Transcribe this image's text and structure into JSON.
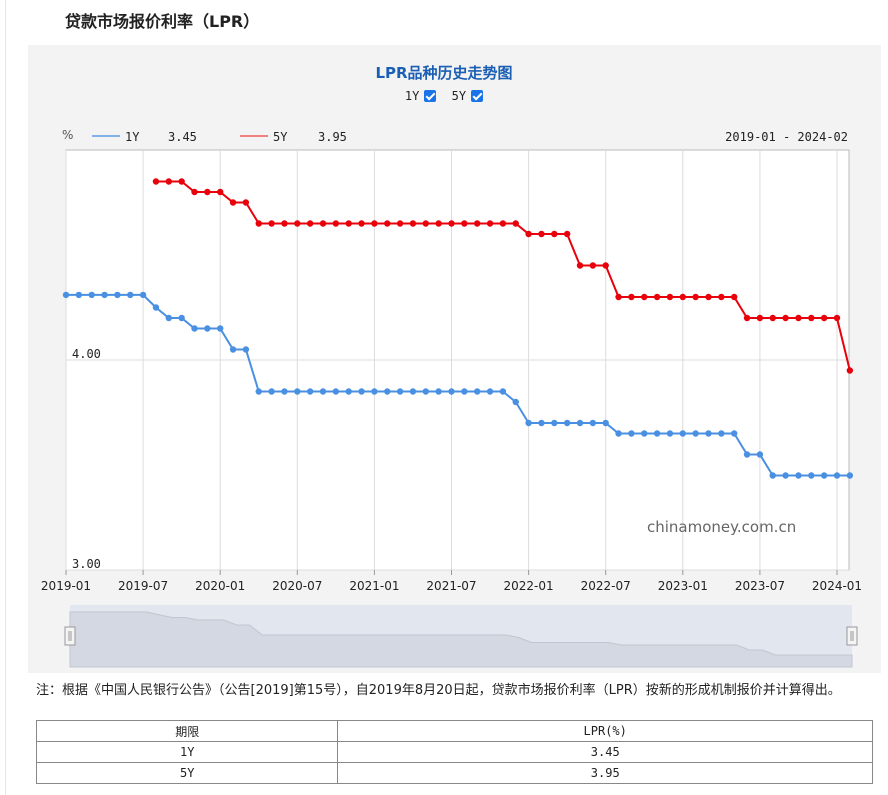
{
  "page_title": "贷款市场报价利率（LPR）",
  "chart_data": {
    "type": "line",
    "title": "LPR品种历史走势图",
    "toggles": [
      {
        "label": "1Y",
        "checked": true
      },
      {
        "label": "5Y",
        "checked": true
      }
    ],
    "unit_label": "%",
    "range_label": "2019-01 - 2024-02",
    "watermark": "chinamoney.com.cn",
    "ylim": [
      3.0,
      5.0
    ],
    "y_ticks": [
      {
        "value": 3.0,
        "label": "3.00"
      },
      {
        "value": 4.0,
        "label": "4.00"
      }
    ],
    "x_ticks": [
      "2019-01",
      "2019-07",
      "2020-01",
      "2020-07",
      "2021-01",
      "2021-07",
      "2022-01",
      "2022-07",
      "2023-01",
      "2023-07",
      "2024-01"
    ],
    "x_start": "2019-01",
    "grid": true,
    "legend_position": "top-left",
    "series": [
      {
        "name": "1Y",
        "legend_value": "3.45",
        "color": "#4a90e2",
        "line_color": "#7fb1ea",
        "x": [
          "2019-01",
          "2019-02",
          "2019-03",
          "2019-04",
          "2019-05",
          "2019-06",
          "2019-07",
          "2019-08",
          "2019-09",
          "2019-10",
          "2019-11",
          "2019-12",
          "2020-01",
          "2020-02",
          "2020-03",
          "2020-04",
          "2020-05",
          "2020-06",
          "2020-07",
          "2020-08",
          "2020-09",
          "2020-10",
          "2020-11",
          "2020-12",
          "2021-01",
          "2021-02",
          "2021-03",
          "2021-04",
          "2021-05",
          "2021-06",
          "2021-07",
          "2021-08",
          "2021-09",
          "2021-10",
          "2021-11",
          "2021-12",
          "2022-01",
          "2022-02",
          "2022-03",
          "2022-04",
          "2022-05",
          "2022-06",
          "2022-07",
          "2022-08",
          "2022-09",
          "2022-10",
          "2022-11",
          "2022-12",
          "2023-01",
          "2023-02",
          "2023-03",
          "2023-04",
          "2023-05",
          "2023-06",
          "2023-07",
          "2023-08",
          "2023-09",
          "2023-10",
          "2023-11",
          "2023-12",
          "2024-01",
          "2024-02"
        ],
        "y": [
          4.31,
          4.31,
          4.31,
          4.31,
          4.31,
          4.31,
          4.31,
          4.25,
          4.2,
          4.2,
          4.15,
          4.15,
          4.15,
          4.05,
          4.05,
          3.85,
          3.85,
          3.85,
          3.85,
          3.85,
          3.85,
          3.85,
          3.85,
          3.85,
          3.85,
          3.85,
          3.85,
          3.85,
          3.85,
          3.85,
          3.85,
          3.85,
          3.85,
          3.85,
          3.85,
          3.8,
          3.7,
          3.7,
          3.7,
          3.7,
          3.7,
          3.7,
          3.7,
          3.65,
          3.65,
          3.65,
          3.65,
          3.65,
          3.65,
          3.65,
          3.65,
          3.65,
          3.65,
          3.55,
          3.55,
          3.45,
          3.45,
          3.45,
          3.45,
          3.45,
          3.45,
          3.45
        ]
      },
      {
        "name": "5Y",
        "legend_value": "3.95",
        "color": "#e8000b",
        "line_color": "#f08080",
        "x": [
          "2019-08",
          "2019-09",
          "2019-10",
          "2019-11",
          "2019-12",
          "2020-01",
          "2020-02",
          "2020-03",
          "2020-04",
          "2020-05",
          "2020-06",
          "2020-07",
          "2020-08",
          "2020-09",
          "2020-10",
          "2020-11",
          "2020-12",
          "2021-01",
          "2021-02",
          "2021-03",
          "2021-04",
          "2021-05",
          "2021-06",
          "2021-07",
          "2021-08",
          "2021-09",
          "2021-10",
          "2021-11",
          "2021-12",
          "2022-01",
          "2022-02",
          "2022-03",
          "2022-04",
          "2022-05",
          "2022-06",
          "2022-07",
          "2022-08",
          "2022-09",
          "2022-10",
          "2022-11",
          "2022-12",
          "2023-01",
          "2023-02",
          "2023-03",
          "2023-04",
          "2023-05",
          "2023-06",
          "2023-07",
          "2023-08",
          "2023-09",
          "2023-10",
          "2023-11",
          "2023-12",
          "2024-01",
          "2024-02"
        ],
        "y": [
          4.85,
          4.85,
          4.85,
          4.8,
          4.8,
          4.8,
          4.75,
          4.75,
          4.65,
          4.65,
          4.65,
          4.65,
          4.65,
          4.65,
          4.65,
          4.65,
          4.65,
          4.65,
          4.65,
          4.65,
          4.65,
          4.65,
          4.65,
          4.65,
          4.65,
          4.65,
          4.65,
          4.65,
          4.65,
          4.6,
          4.6,
          4.6,
          4.6,
          4.45,
          4.45,
          4.45,
          4.3,
          4.3,
          4.3,
          4.3,
          4.3,
          4.3,
          4.3,
          4.3,
          4.3,
          4.3,
          4.2,
          4.2,
          4.2,
          4.2,
          4.2,
          4.2,
          4.2,
          4.2,
          3.95
        ]
      }
    ]
  },
  "note": "注：根据《中国人民银行公告》（公告[2019]第15号），自2019年8月20日起，贷款市场报价利率（LPR）按新的形成机制报价并计算得出。",
  "table": {
    "headers": [
      "期限",
      "LPR(%)"
    ],
    "rows": [
      [
        "1Y",
        "3.45"
      ],
      [
        "5Y",
        "3.95"
      ]
    ]
  }
}
